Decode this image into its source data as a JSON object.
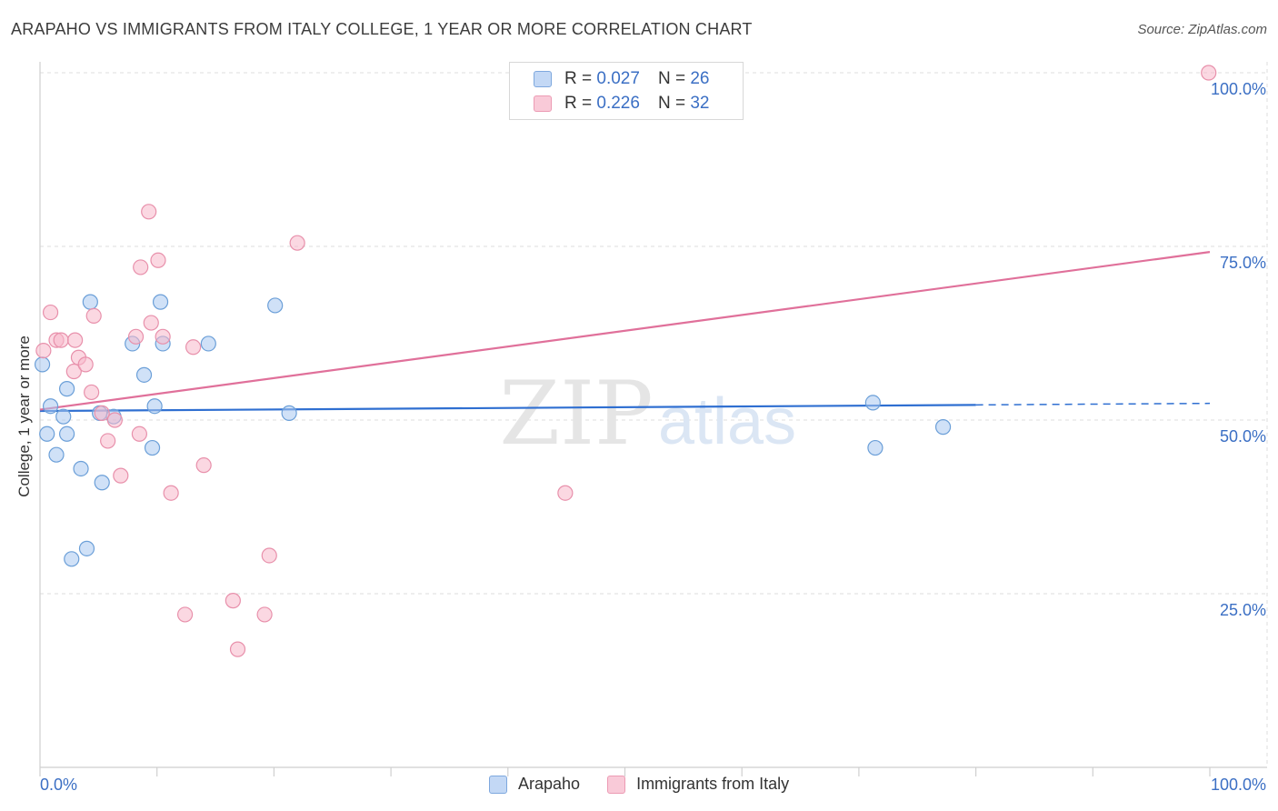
{
  "header": {
    "title": "ARAPAHO VS IMMIGRANTS FROM ITALY COLLEGE, 1 YEAR OR MORE CORRELATION CHART",
    "source": "Source: ZipAtlas.com"
  },
  "watermark": {
    "zip": "ZIP",
    "atlas": "atlas"
  },
  "legend_top": {
    "rows": [
      {
        "r_label": "R =",
        "r_value": "0.027",
        "n_label": "N =",
        "n_value": "26"
      },
      {
        "r_label": "R =",
        "r_value": "0.226",
        "n_label": "N =",
        "n_value": "32"
      }
    ]
  },
  "legend_bottom": {
    "items": [
      "Arapaho",
      "Immigrants from Italy"
    ]
  },
  "colors": {
    "blue_fill": "#a9c8f0",
    "blue_stroke": "#6b9fd8",
    "blue_line": "#2f6fd1",
    "pink_fill": "#f7b8cb",
    "pink_stroke": "#e890ab",
    "pink_line": "#e0709a",
    "tick_text": "#3b6fc4",
    "grid": "#dcdcdc"
  },
  "chart_data": {
    "type": "scatter",
    "title": "ARAPAHO VS IMMIGRANTS FROM ITALY COLLEGE, 1 YEAR OR MORE CORRELATION CHART",
    "xlabel": "",
    "ylabel": "College, 1 year or more",
    "xlim": [
      0,
      100
    ],
    "ylim": [
      3,
      103
    ],
    "x_tick_labels": [
      "0.0%",
      "100.0%"
    ],
    "y_ticks": [
      {
        "value": 25,
        "label": "25.0%"
      },
      {
        "value": 50,
        "label": "50.0%"
      },
      {
        "value": 75,
        "label": "75.0%"
      },
      {
        "value": 100,
        "label": "100.0%"
      }
    ],
    "grid": true,
    "series": [
      {
        "name": "Arapaho",
        "color_key": "blue",
        "r": 0.027,
        "n": 26,
        "points": [
          [
            0.2,
            58
          ],
          [
            0.9,
            52
          ],
          [
            0.6,
            48
          ],
          [
            2.3,
            48
          ],
          [
            2.0,
            50.5
          ],
          [
            2.3,
            54.5
          ],
          [
            1.4,
            45
          ],
          [
            3.5,
            43
          ],
          [
            4.3,
            67
          ],
          [
            5.1,
            51
          ],
          [
            5.3,
            41
          ],
          [
            6.3,
            50.5
          ],
          [
            7.9,
            61
          ],
          [
            8.9,
            56.5
          ],
          [
            9.8,
            52
          ],
          [
            10.5,
            61
          ],
          [
            10.3,
            67
          ],
          [
            9.6,
            46
          ],
          [
            14.4,
            61
          ],
          [
            20.1,
            66.5
          ],
          [
            21.3,
            51
          ],
          [
            4.0,
            31.5
          ],
          [
            2.7,
            30
          ],
          [
            71.4,
            46
          ],
          [
            71.2,
            52.5
          ],
          [
            77.2,
            49
          ]
        ],
        "trend": {
          "x_solid": [
            0,
            80
          ],
          "x_dash": [
            80,
            100
          ],
          "y_at_0": 51.3,
          "y_at_100": 52.4
        }
      },
      {
        "name": "Immigrants from Italy",
        "color_key": "pink",
        "r": 0.226,
        "n": 32,
        "points": [
          [
            0.3,
            60
          ],
          [
            0.9,
            65.5
          ],
          [
            1.4,
            61.5
          ],
          [
            1.8,
            61.5
          ],
          [
            3.0,
            61.5
          ],
          [
            3.3,
            59
          ],
          [
            2.9,
            57
          ],
          [
            3.9,
            58
          ],
          [
            4.4,
            54
          ],
          [
            4.6,
            65
          ],
          [
            5.3,
            51
          ],
          [
            6.4,
            50
          ],
          [
            5.8,
            47
          ],
          [
            6.9,
            42
          ],
          [
            8.2,
            62
          ],
          [
            8.6,
            72
          ],
          [
            8.5,
            48
          ],
          [
            9.3,
            80
          ],
          [
            9.5,
            64
          ],
          [
            10.1,
            73
          ],
          [
            10.5,
            62
          ],
          [
            11.2,
            39.5
          ],
          [
            13.1,
            60.5
          ],
          [
            14.0,
            43.5
          ],
          [
            12.4,
            22
          ],
          [
            16.5,
            24
          ],
          [
            16.9,
            17
          ],
          [
            19.2,
            22
          ],
          [
            19.6,
            30.5
          ],
          [
            22.0,
            75.5
          ],
          [
            44.9,
            39.5
          ],
          [
            99.9,
            100
          ]
        ],
        "trend": {
          "x_solid": [
            0,
            100
          ],
          "y_at_0": 51.5,
          "y_at_100": 74.2
        }
      }
    ]
  }
}
